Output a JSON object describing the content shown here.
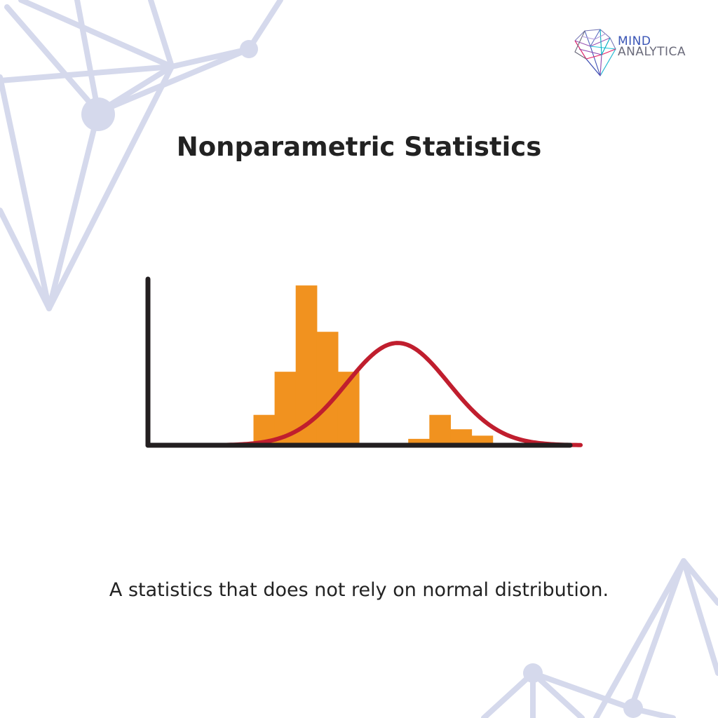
{
  "brand": {
    "line1": "MIND",
    "line2": "ANALYTICA",
    "line1_color": "#3a55b5",
    "line2_color": "#6a6a7a",
    "icon": "crystal-gem-logo-icon"
  },
  "title": "Nonparametric Statistics",
  "caption": "A statistics that does not rely on normal distribution.",
  "colors": {
    "background": "#ffffff",
    "network": "#d5d9ec",
    "bars": "#f1921f",
    "curve": "#c01e2e",
    "axes": "#231f20",
    "text": "#222222"
  },
  "chart_data": {
    "type": "bar",
    "title": "",
    "xlabel": "",
    "ylabel": "",
    "grid": false,
    "legend": "none",
    "xlim": [
      0,
      12
    ],
    "ylim": [
      0,
      1.04
    ],
    "bars": [
      {
        "x0": 3.0,
        "x1": 3.6,
        "value": 0.19
      },
      {
        "x0": 3.6,
        "x1": 4.2,
        "value": 0.46
      },
      {
        "x0": 4.2,
        "x1": 4.8,
        "value": 1.0
      },
      {
        "x0": 4.8,
        "x1": 5.4,
        "value": 0.71
      },
      {
        "x0": 5.4,
        "x1": 6.0,
        "value": 0.46
      },
      {
        "x0": 7.4,
        "x1": 8.0,
        "value": 0.04
      },
      {
        "x0": 8.0,
        "x1": 8.6,
        "value": 0.19
      },
      {
        "x0": 8.6,
        "x1": 9.2,
        "value": 0.1
      },
      {
        "x0": 9.2,
        "x1": 9.8,
        "value": 0.06
      }
    ],
    "curve": {
      "type": "line",
      "shape": "normal",
      "mean": 7.1,
      "sd": 1.45,
      "peak": 0.64,
      "x_range": [
        2.1,
        12.3
      ]
    }
  }
}
